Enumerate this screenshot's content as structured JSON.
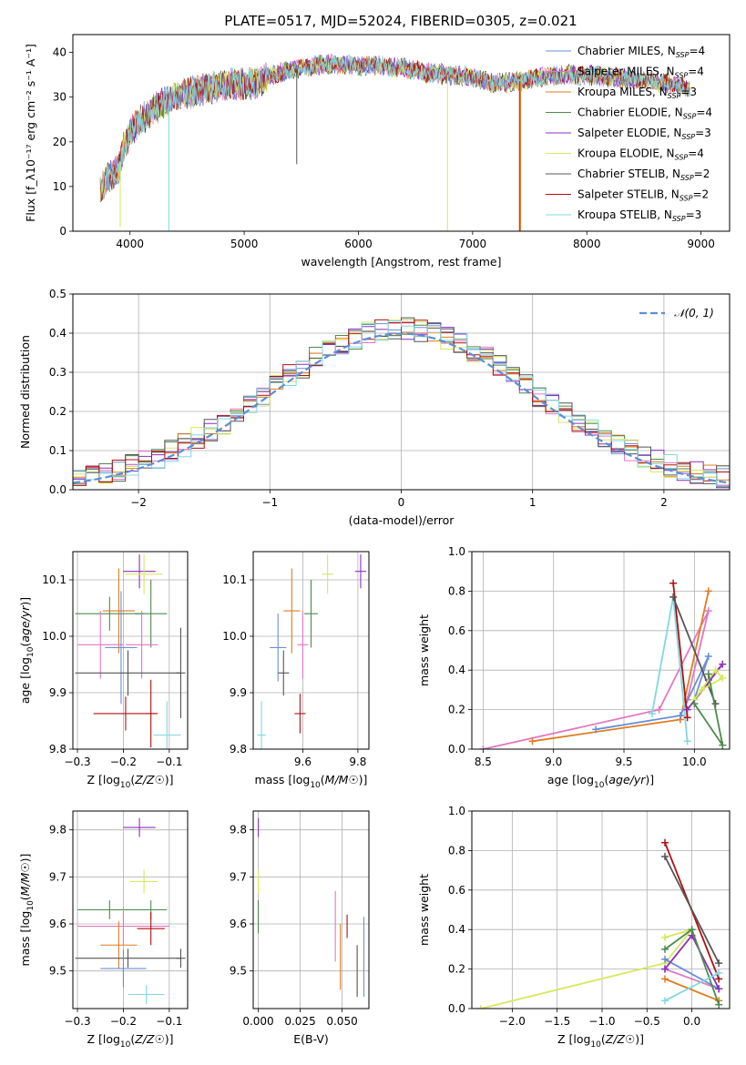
{
  "figure": {
    "title": "PLATE=0517, MJD=52024, FIBERID=0305, z=0.021"
  },
  "colors": {
    "chabrier_miles": "#6a8fd4",
    "salpeter_miles": "#e377c2",
    "kroupa_miles": "#e07b20",
    "chabrier_elodie": "#4d8a4d",
    "salpeter_elodie": "#8c2fbd",
    "kroupa_elodie": "#d6e85c",
    "chabrier_stelib": "#555555",
    "salpeter_stelib": "#b01010",
    "kroupa_stelib": "#80d8e0",
    "normal_curve": "#5b8fd6"
  },
  "chart_data": [
    {
      "id": "spectrum",
      "type": "line",
      "xlabel": "wavelength [Angstrom, rest frame]",
      "ylabel": "Flux [f_λ10⁻¹⁷ erg cm⁻² s⁻¹ A⁻¹]",
      "xlim": [
        3500,
        9250
      ],
      "ylim": [
        0,
        44
      ],
      "xticks": [
        4000,
        5000,
        6000,
        7000,
        8000,
        9000
      ],
      "yticks": [
        0,
        10,
        20,
        30,
        40
      ],
      "grid": false,
      "legend_position": "top-right",
      "legend": [
        {
          "label": "Chabrier MILES, N",
          "sub": "SSP",
          "tail": "=4",
          "color_key": "chabrier_miles"
        },
        {
          "label": "Salpeter MILES, N",
          "sub": "SSP",
          "tail": "=4",
          "color_key": "salpeter_miles"
        },
        {
          "label": "Kroupa MILES, N",
          "sub": "SSP",
          "tail": "=3",
          "color_key": "kroupa_miles"
        },
        {
          "label": "Chabrier ELODIE, N",
          "sub": "SSP",
          "tail": "=4",
          "color_key": "chabrier_elodie"
        },
        {
          "label": "Salpeter ELODIE, N",
          "sub": "SSP",
          "tail": "=3",
          "color_key": "salpeter_elodie"
        },
        {
          "label": "Kroupa ELODIE, N",
          "sub": "SSP",
          "tail": "=4",
          "color_key": "kroupa_elodie"
        },
        {
          "label": "Chabrier STELIB, N",
          "sub": "SSP",
          "tail": "=2",
          "color_key": "chabrier_stelib"
        },
        {
          "label": "Salpeter STELIB, N",
          "sub": "SSP",
          "tail": "=2",
          "color_key": "salpeter_stelib"
        },
        {
          "label": "Kroupa STELIB, N",
          "sub": "SSP",
          "tail": "=3",
          "color_key": "kroupa_stelib"
        }
      ],
      "continuum": [
        [
          3740,
          9
        ],
        [
          3800,
          12
        ],
        [
          3900,
          14
        ],
        [
          3950,
          19
        ],
        [
          4000,
          22
        ],
        [
          4100,
          25
        ],
        [
          4200,
          27
        ],
        [
          4300,
          29
        ],
        [
          4400,
          30
        ],
        [
          4500,
          31
        ],
        [
          4700,
          32
        ],
        [
          4900,
          33
        ],
        [
          5100,
          33
        ],
        [
          5200,
          34.5
        ],
        [
          5400,
          36
        ],
        [
          5600,
          37
        ],
        [
          5800,
          37.5
        ],
        [
          6000,
          37
        ],
        [
          6200,
          37
        ],
        [
          6400,
          36.5
        ],
        [
          6600,
          35.5
        ],
        [
          6800,
          35
        ],
        [
          7000,
          34.5
        ],
        [
          7200,
          33
        ],
        [
          7400,
          33.5
        ],
        [
          7600,
          34.5
        ],
        [
          7800,
          35
        ],
        [
          8000,
          35
        ],
        [
          8200,
          34.5
        ],
        [
          8400,
          34
        ],
        [
          8600,
          33.5
        ],
        [
          8800,
          32.5
        ],
        [
          8900,
          32
        ]
      ],
      "deep_drops": [
        {
          "x": 3915,
          "y": 1,
          "color_key": "kroupa_elodie"
        },
        {
          "x": 4340,
          "y": 0,
          "color_key": "kroupa_stelib"
        },
        {
          "x": 5460,
          "y": 15,
          "color_key": "chabrier_stelib"
        },
        {
          "x": 6780,
          "y": 0,
          "color_key": "kroupa_elodie"
        },
        {
          "x": 7420,
          "y": 0,
          "color_key": "kroupa_miles"
        },
        {
          "x": 7410,
          "y": 0,
          "color_key": "salpeter_stelib"
        }
      ]
    },
    {
      "id": "residuals",
      "type": "histogram",
      "xlabel": "(data-model)/error",
      "ylabel": "Normed distribution",
      "xlim": [
        -2.5,
        2.5
      ],
      "ylim": [
        0,
        0.5
      ],
      "xticks": [
        -2,
        -1,
        0,
        1,
        2
      ],
      "yticks": [
        0.0,
        0.1,
        0.2,
        0.3,
        0.4,
        0.5
      ],
      "grid": true,
      "legend_position": "top-right",
      "legend": [
        {
          "label": "𝒩(0, 1)",
          "color_key": "normal_curve",
          "style": "dashed"
        }
      ],
      "bin_width": 0.1,
      "bin_start": -2.5,
      "normal": {
        "mean": 0,
        "sigma": 1
      }
    },
    {
      "id": "age-vs-z",
      "type": "errorbar",
      "xlabel": "Z [log10(Z/Z⊙)]",
      "ylabel": "age [log10(age/yr)]",
      "xlim": [
        -0.31,
        -0.06
      ],
      "ylim": [
        9.8,
        10.15
      ],
      "xticks": [
        -0.3,
        -0.2,
        -0.1
      ],
      "yticks": [
        9.8,
        9.9,
        10.0,
        10.1
      ],
      "grid": true,
      "points": [
        {
          "x": -0.165,
          "y": 10.115,
          "xerr": 0.035,
          "yerr": 0.03,
          "color_key": "salpeter_elodie"
        },
        {
          "x": -0.155,
          "y": 10.11,
          "xerr": 0.04,
          "yerr": 0.035,
          "color_key": "kroupa_elodie"
        },
        {
          "x": -0.23,
          "y": 10.04,
          "xerr": 0.075,
          "yerr": 0.03,
          "color_key": "chabrier_elodie"
        },
        {
          "x": -0.14,
          "y": 10.04,
          "xerr": 0.035,
          "yerr": 0.06,
          "color_key": "chabrier_elodie"
        },
        {
          "x": -0.21,
          "y": 10.045,
          "xerr": 0.035,
          "yerr": 0.075,
          "color_key": "kroupa_miles"
        },
        {
          "x": -0.25,
          "y": 9.985,
          "xerr": 0.05,
          "yerr": 0.06,
          "color_key": "salpeter_miles"
        },
        {
          "x": -0.16,
          "y": 9.985,
          "xerr": 0.035,
          "yerr": 0.06,
          "color_key": "salpeter_miles"
        },
        {
          "x": -0.205,
          "y": 9.98,
          "xerr": 0.035,
          "yerr": 0.1,
          "color_key": "chabrier_miles"
        },
        {
          "x": -0.19,
          "y": 9.935,
          "xerr": 0.115,
          "yerr": 0.04,
          "color_key": "chabrier_stelib"
        },
        {
          "x": -0.075,
          "y": 9.935,
          "xerr": 0.01,
          "yerr": 0.08,
          "color_key": "chabrier_stelib"
        },
        {
          "x": -0.195,
          "y": 9.863,
          "xerr": 0.07,
          "yerr": 0.03,
          "color_key": "salpeter_stelib"
        },
        {
          "x": -0.14,
          "y": 9.863,
          "xerr": 0.01,
          "yerr": 0.06,
          "color_key": "salpeter_stelib"
        },
        {
          "x": -0.105,
          "y": 9.825,
          "xerr": 0.03,
          "yerr": 0.06,
          "color_key": "kroupa_stelib"
        }
      ]
    },
    {
      "id": "age-vs-mass",
      "type": "errorbar",
      "xlabel": "mass [log10(M/M⊙)]",
      "ylabel": "",
      "xlim": [
        9.42,
        9.84
      ],
      "ylim": [
        9.8,
        10.15
      ],
      "xticks": [
        9.6,
        9.8
      ],
      "yticks": [
        9.8,
        9.9,
        10.0,
        10.1
      ],
      "grid": true,
      "points": [
        {
          "x": 9.81,
          "y": 10.115,
          "xerr": 0.02,
          "yerr": 0.03,
          "color_key": "salpeter_elodie"
        },
        {
          "x": 9.69,
          "y": 10.11,
          "xerr": 0.02,
          "yerr": 0.035,
          "color_key": "kroupa_elodie"
        },
        {
          "x": 9.63,
          "y": 10.04,
          "xerr": 0.025,
          "yerr": 0.06,
          "color_key": "chabrier_elodie"
        },
        {
          "x": 9.56,
          "y": 10.045,
          "xerr": 0.03,
          "yerr": 0.075,
          "color_key": "kroupa_miles"
        },
        {
          "x": 9.6,
          "y": 9.985,
          "xerr": 0.02,
          "yerr": 0.06,
          "color_key": "salpeter_miles"
        },
        {
          "x": 9.51,
          "y": 9.98,
          "xerr": 0.03,
          "yerr": 0.06,
          "color_key": "chabrier_miles"
        },
        {
          "x": 9.53,
          "y": 9.935,
          "xerr": 0.02,
          "yerr": 0.04,
          "color_key": "chabrier_stelib"
        },
        {
          "x": 9.59,
          "y": 9.863,
          "xerr": 0.02,
          "yerr": 0.035,
          "color_key": "salpeter_stelib"
        },
        {
          "x": 9.45,
          "y": 9.825,
          "xerr": 0.015,
          "yerr": 0.06,
          "color_key": "kroupa_stelib"
        }
      ]
    },
    {
      "id": "mass-weight-vs-age",
      "type": "line",
      "xlabel": "age [log10(age/yr)]",
      "ylabel": "mass weight",
      "xlim": [
        8.42,
        10.25
      ],
      "ylim": [
        0,
        1
      ],
      "xticks": [
        8.5,
        9.0,
        9.5,
        10.0
      ],
      "yticks": [
        0.0,
        0.2,
        0.4,
        0.6,
        0.8,
        1.0
      ],
      "grid": true,
      "series": [
        {
          "color_key": "salpeter_miles",
          "x": [
            8.5,
            9.75,
            10.1,
            9.95
          ],
          "y": [
            0.0,
            0.2,
            0.7,
            0.25
          ]
        },
        {
          "color_key": "kroupa_miles",
          "x": [
            8.85,
            9.9,
            10.1
          ],
          "y": [
            0.04,
            0.15,
            0.8
          ]
        },
        {
          "color_key": "chabrier_miles",
          "x": [
            9.3,
            9.9,
            10.1,
            10.0
          ],
          "y": [
            0.1,
            0.17,
            0.47,
            0.25
          ]
        },
        {
          "color_key": "kroupa_stelib",
          "x": [
            9.7,
            9.85,
            9.95
          ],
          "y": [
            0.18,
            0.77,
            0.04
          ]
        },
        {
          "color_key": "salpeter_stelib",
          "x": [
            9.85,
            9.95
          ],
          "y": [
            0.84,
            0.16
          ]
        },
        {
          "color_key": "chabrier_stelib",
          "x": [
            9.85,
            10.15
          ],
          "y": [
            0.77,
            0.23
          ]
        },
        {
          "color_key": "salpeter_elodie",
          "x": [
            9.95,
            10.2,
            10.1
          ],
          "y": [
            0.2,
            0.43,
            0.35
          ]
        },
        {
          "color_key": "kroupa_elodie",
          "x": [
            10.0,
            10.15,
            10.2,
            10.05
          ],
          "y": [
            0.25,
            0.4,
            0.36,
            0.3
          ]
        },
        {
          "color_key": "chabrier_elodie",
          "x": [
            10.0,
            10.2,
            10.1
          ],
          "y": [
            0.23,
            0.02,
            0.38
          ]
        }
      ]
    },
    {
      "id": "mass-vs-z",
      "type": "errorbar",
      "xlabel": "Z [log10(Z/Z⊙)]",
      "ylabel": "mass [log10(M/M⊙)]",
      "xlim": [
        -0.31,
        -0.06
      ],
      "ylim": [
        9.42,
        9.84
      ],
      "xticks": [
        -0.3,
        -0.2,
        -0.1
      ],
      "yticks": [
        9.5,
        9.6,
        9.7,
        9.8
      ],
      "grid": true,
      "points": [
        {
          "x": -0.165,
          "y": 9.805,
          "xerr": 0.035,
          "yerr": 0.02,
          "color_key": "salpeter_elodie"
        },
        {
          "x": -0.155,
          "y": 9.69,
          "xerr": 0.03,
          "yerr": 0.025,
          "color_key": "kroupa_elodie"
        },
        {
          "x": -0.23,
          "y": 9.63,
          "xerr": 0.07,
          "yerr": 0.02,
          "color_key": "chabrier_elodie"
        },
        {
          "x": -0.14,
          "y": 9.63,
          "xerr": 0.035,
          "yerr": 0.02,
          "color_key": "chabrier_elodie"
        },
        {
          "x": -0.2,
          "y": 9.595,
          "xerr": 0.1,
          "yerr": 0.04,
          "color_key": "salpeter_miles"
        },
        {
          "x": -0.14,
          "y": 9.59,
          "xerr": 0.03,
          "yerr": 0.035,
          "color_key": "salpeter_stelib"
        },
        {
          "x": -0.21,
          "y": 9.555,
          "xerr": 0.04,
          "yerr": 0.05,
          "color_key": "kroupa_miles"
        },
        {
          "x": -0.19,
          "y": 9.527,
          "xerr": 0.115,
          "yerr": 0.02,
          "color_key": "chabrier_stelib"
        },
        {
          "x": -0.075,
          "y": 9.527,
          "xerr": 0.01,
          "yerr": 0.02,
          "color_key": "chabrier_stelib"
        },
        {
          "x": -0.2,
          "y": 9.505,
          "xerr": 0.05,
          "yerr": 0.04,
          "color_key": "chabrier_miles"
        },
        {
          "x": -0.15,
          "y": 9.45,
          "xerr": 0.04,
          "yerr": 0.02,
          "color_key": "kroupa_stelib"
        }
      ]
    },
    {
      "id": "mass-vs-ebv",
      "type": "errorbar",
      "xlabel": "E(B-V)",
      "ylabel": "",
      "xlim": [
        -0.003,
        0.066
      ],
      "ylim": [
        9.42,
        9.84
      ],
      "xticks": [
        0.0,
        0.025,
        0.05
      ],
      "xtick_labels": [
        "0.000",
        "0.025",
        "0.050"
      ],
      "yticks": [
        9.5,
        9.6,
        9.7,
        9.8
      ],
      "grid": true,
      "points": [
        {
          "x": 0.0,
          "y": 9.805,
          "xerr": 0.0,
          "yerr": 0.02,
          "color_key": "salpeter_elodie"
        },
        {
          "x": 0.0,
          "y": 9.69,
          "xerr": 0.0,
          "yerr": 0.025,
          "color_key": "kroupa_elodie"
        },
        {
          "x": 0.0,
          "y": 9.615,
          "xerr": 0.0,
          "yerr": 0.035,
          "color_key": "chabrier_elodie"
        },
        {
          "x": 0.046,
          "y": 9.595,
          "xerr": 0.0,
          "yerr": 0.075,
          "color_key": "salpeter_miles"
        },
        {
          "x": 0.053,
          "y": 9.595,
          "xerr": 0.0,
          "yerr": 0.025,
          "color_key": "salpeter_stelib"
        },
        {
          "x": 0.049,
          "y": 9.53,
          "xerr": 0.0,
          "yerr": 0.07,
          "color_key": "kroupa_miles"
        },
        {
          "x": 0.059,
          "y": 9.5,
          "xerr": 0.0,
          "yerr": 0.055,
          "color_key": "chabrier_stelib"
        },
        {
          "x": 0.063,
          "y": 9.53,
          "xerr": 0.0,
          "yerr": 0.085,
          "color_key": "chabrier_miles"
        }
      ]
    },
    {
      "id": "mass-weight-vs-z",
      "type": "line",
      "xlabel": "Z [log10(Z/Z⊙)]",
      "ylabel": "mass weight",
      "xlim": [
        -2.45,
        0.42
      ],
      "ylim": [
        0,
        1
      ],
      "xticks": [
        -2.0,
        -1.5,
        -1.0,
        -0.5,
        0.0
      ],
      "yticks": [
        0.0,
        0.2,
        0.4,
        0.6,
        0.8,
        1.0
      ],
      "grid": true,
      "series": [
        {
          "color_key": "kroupa_elodie",
          "x": [
            -2.35,
            -0.3,
            0.0,
            -0.3
          ],
          "y": [
            0.0,
            0.23,
            0.4,
            0.36
          ]
        },
        {
          "color_key": "salpeter_stelib",
          "x": [
            -0.3,
            0.3
          ],
          "y": [
            0.84,
            0.15
          ]
        },
        {
          "color_key": "chabrier_stelib",
          "x": [
            -0.3,
            0.3
          ],
          "y": [
            0.77,
            0.23
          ]
        },
        {
          "color_key": "kroupa_miles",
          "x": [
            -0.3,
            0.3
          ],
          "y": [
            0.15,
            0.04
          ]
        },
        {
          "color_key": "salpeter_miles",
          "x": [
            -0.3,
            0.3
          ],
          "y": [
            0.2,
            0.1
          ]
        },
        {
          "color_key": "chabrier_miles",
          "x": [
            -0.3,
            0.3
          ],
          "y": [
            0.25,
            0.1
          ]
        },
        {
          "color_key": "salpeter_elodie",
          "x": [
            -0.3,
            0.0,
            0.3
          ],
          "y": [
            0.2,
            0.37,
            0.1
          ]
        },
        {
          "color_key": "chabrier_elodie",
          "x": [
            -0.3,
            0.0,
            0.3
          ],
          "y": [
            0.3,
            0.4,
            0.02
          ]
        },
        {
          "color_key": "kroupa_stelib",
          "x": [
            -0.3,
            0.3
          ],
          "y": [
            0.04,
            0.18
          ]
        }
      ]
    }
  ]
}
